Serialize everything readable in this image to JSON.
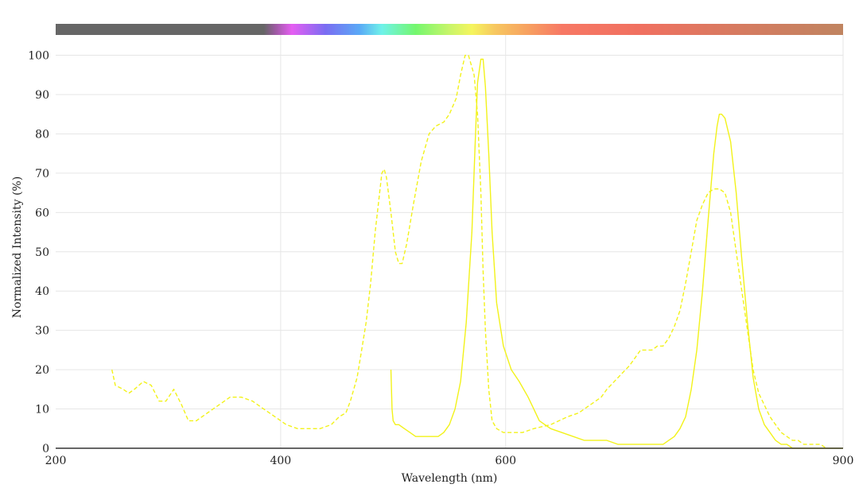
{
  "chart_data": {
    "type": "line",
    "xlabel": "Wavelength (nm)",
    "ylabel": "Normalized Intensity (%)",
    "xlim": [
      200,
      900
    ],
    "ylim": [
      0,
      108
    ],
    "x_ticks": [
      200,
      400,
      600,
      900
    ],
    "y_ticks": [
      0,
      10,
      20,
      30,
      40,
      50,
      60,
      70,
      80,
      90,
      100
    ],
    "grid": true,
    "legend": "none",
    "spectrum_bar": {
      "stops": [
        {
          "nm": 200,
          "color": "#666666"
        },
        {
          "nm": 385,
          "color": "#666666"
        },
        {
          "nm": 395,
          "color": "#9b5aa0"
        },
        {
          "nm": 410,
          "color": "#e55ef2"
        },
        {
          "nm": 440,
          "color": "#7a6df2"
        },
        {
          "nm": 470,
          "color": "#5aa9f6"
        },
        {
          "nm": 490,
          "color": "#6ff2e9"
        },
        {
          "nm": 520,
          "color": "#74f76e"
        },
        {
          "nm": 550,
          "color": "#c8f56a"
        },
        {
          "nm": 570,
          "color": "#f5f55e"
        },
        {
          "nm": 590,
          "color": "#f7c860"
        },
        {
          "nm": 620,
          "color": "#f7a060"
        },
        {
          "nm": 650,
          "color": "#f77864"
        },
        {
          "nm": 720,
          "color": "#f07060"
        },
        {
          "nm": 800,
          "color": "#d87a60"
        },
        {
          "nm": 900,
          "color": "#c08460"
        }
      ]
    },
    "series": [
      {
        "style": "dashed",
        "color": "#f2f21a",
        "x": [
          250,
          253,
          260,
          265,
          270,
          278,
          285,
          292,
          298,
          305,
          312,
          318,
          325,
          335,
          345,
          355,
          365,
          375,
          385,
          395,
          405,
          415,
          425,
          435,
          445,
          452,
          458,
          462,
          468,
          472,
          476,
          480,
          484,
          488,
          490,
          492,
          494,
          498,
          502,
          505,
          508,
          512,
          518,
          525,
          532,
          538,
          545,
          550,
          556,
          560,
          564,
          567,
          572,
          575,
          578,
          580,
          582,
          585,
          588,
          592,
          598,
          605,
          615,
          625,
          640,
          655,
          665,
          675,
          685,
          690,
          700,
          710,
          715,
          720,
          725,
          730,
          735,
          740,
          745,
          750,
          755,
          760,
          765,
          770,
          775,
          780,
          785,
          790,
          795,
          800,
          805,
          810,
          815,
          820,
          825,
          830,
          835,
          840,
          845,
          850,
          855,
          860,
          865,
          870,
          875,
          880,
          885
        ],
        "y": [
          20,
          16,
          15,
          14,
          15,
          17,
          16,
          12,
          12,
          15,
          11,
          7,
          7,
          9,
          11,
          13,
          13,
          12,
          10,
          8,
          6,
          5,
          5,
          5,
          6,
          8,
          9,
          12,
          18,
          25,
          32,
          42,
          55,
          65,
          70,
          71,
          69,
          60,
          50,
          47,
          47,
          52,
          62,
          73,
          80,
          82,
          83,
          85,
          89,
          95,
          100,
          100,
          95,
          85,
          65,
          45,
          30,
          15,
          7,
          5,
          4,
          4,
          4,
          5,
          6,
          8,
          9,
          11,
          13,
          15,
          18,
          21,
          23,
          25,
          25,
          25,
          26,
          26,
          28,
          31,
          35,
          42,
          50,
          58,
          62,
          65,
          66,
          66,
          65,
          60,
          50,
          40,
          30,
          20,
          14,
          11,
          8,
          6,
          4,
          3,
          2,
          2,
          1,
          1,
          1,
          1,
          0
        ]
      },
      {
        "style": "solid",
        "color": "#f2f21a",
        "x": [
          498,
          499,
          500,
          502,
          505,
          510,
          515,
          520,
          525,
          530,
          540,
          545,
          550,
          555,
          560,
          565,
          570,
          573,
          575,
          578,
          580,
          582,
          585,
          588,
          592,
          598,
          605,
          612,
          620,
          625,
          630,
          640,
          650,
          660,
          670,
          680,
          690,
          700,
          710,
          720,
          730,
          740,
          745,
          750,
          755,
          760,
          765,
          770,
          775,
          780,
          785,
          788,
          790,
          792,
          795,
          800,
          805,
          810,
          815,
          820,
          825,
          830,
          835,
          840,
          845,
          850,
          855,
          860,
          870,
          880,
          900
        ],
        "y": [
          20,
          10,
          7,
          6,
          6,
          5,
          4,
          3,
          3,
          3,
          3,
          4,
          6,
          10,
          17,
          32,
          55,
          78,
          93,
          99,
          99,
          92,
          75,
          55,
          37,
          26,
          20,
          17,
          13,
          10,
          7,
          5,
          4,
          3,
          2,
          2,
          2,
          1,
          1,
          1,
          1,
          1,
          2,
          3,
          5,
          8,
          15,
          25,
          40,
          58,
          75,
          82,
          85,
          85,
          84,
          78,
          65,
          48,
          32,
          18,
          10,
          6,
          4,
          2,
          1,
          1,
          0,
          0,
          0,
          0,
          0
        ]
      }
    ]
  }
}
